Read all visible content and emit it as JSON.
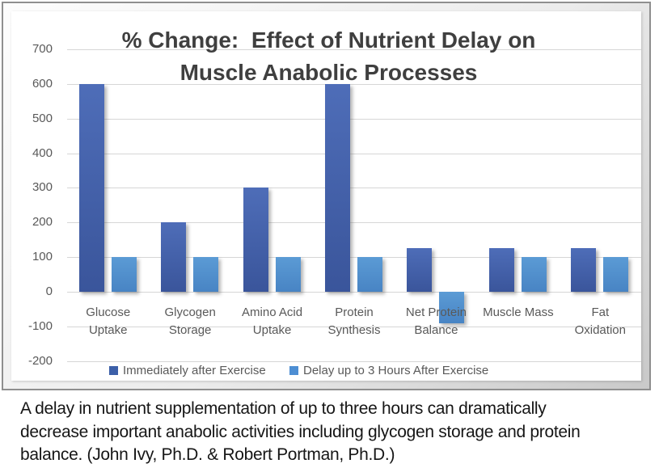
{
  "chart_data": {
    "type": "bar",
    "title": "% Change:  Effect of Nutrient Delay on\nMuscle Anabolic Processes",
    "title_color": "#3f3f3f",
    "categories": [
      "Glucose\nUptake",
      "Glycogen\nStorage",
      "Amino Acid\nUptake",
      "Protein\nSynthesis",
      "Net Protein\nBalance",
      "Muscle Mass",
      "Fat\nOxidation"
    ],
    "series": [
      {
        "name": "Immediately after Exercise",
        "color": "#3c5fa8",
        "color_top": "#4e6db8",
        "color_bottom": "#3a559b",
        "values": [
          600,
          200,
          300,
          600,
          125,
          125,
          125
        ]
      },
      {
        "name": "Delay up to 3 Hours After Exercise",
        "color": "#4d8ed3",
        "color_top": "#5b9bd5",
        "color_bottom": "#4884c4",
        "values": [
          100,
          100,
          100,
          100,
          -90,
          100,
          100
        ]
      }
    ],
    "y_ticks": [
      700,
      600,
      500,
      400,
      300,
      200,
      100,
      0,
      -100,
      -200
    ],
    "ylim": [
      -200,
      700
    ],
    "grid": true,
    "gridline_color": "#d6d6d6",
    "axis_label_color": "#595959",
    "legend_position": "bottom"
  },
  "caption": {
    "text": "A delay in nutrient supplementation of up to three hours can dramatically\ndecrease important anabolic activities including glycogen storage and protein\nbalance. (John Ivy, Ph.D. & Robert Portman, Ph.D.)"
  }
}
